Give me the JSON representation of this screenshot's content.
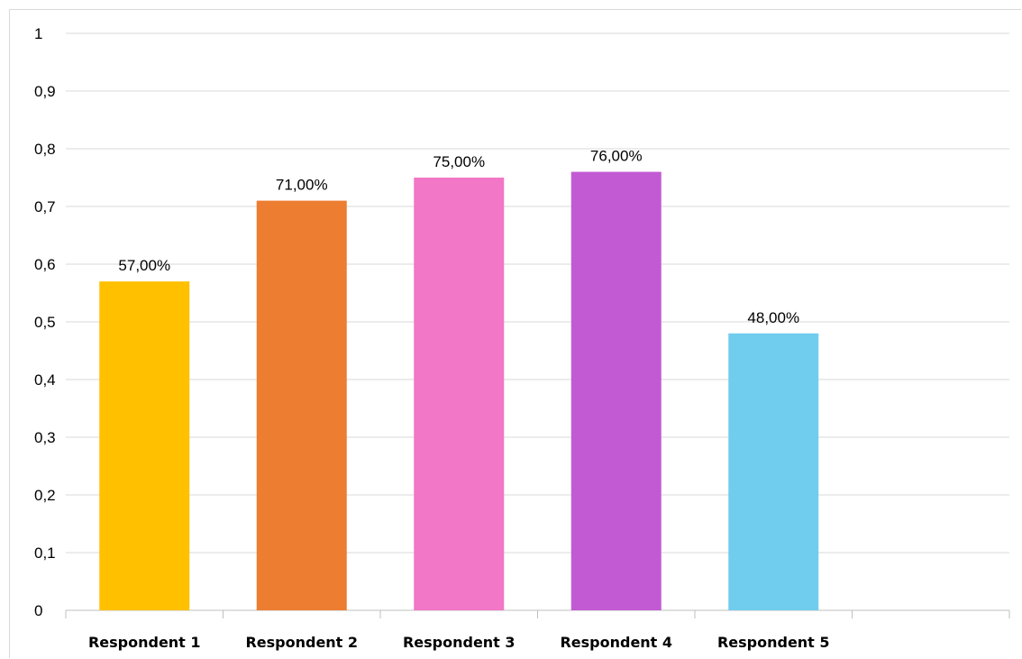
{
  "chart_data": {
    "type": "bar",
    "title": "",
    "xlabel": "",
    "ylabel": "",
    "categories": [
      "Respondent 1",
      "Respondent 2",
      "Respondent 3",
      "Respondent 4",
      "Respondent 5",
      ""
    ],
    "values": [
      0.57,
      0.71,
      0.75,
      0.76,
      0.48,
      null
    ],
    "data_labels": [
      "57,00%",
      "71,00%",
      "75,00%",
      "76,00%",
      "48,00%",
      ""
    ],
    "bar_colors": [
      "#FFC000",
      "#ED7D31",
      "#F277C6",
      "#C25BD3",
      "#70CDEE"
    ],
    "ylim": [
      0,
      1
    ],
    "yticks": [
      0,
      0.1,
      0.2,
      0.3,
      0.4,
      0.5,
      0.6,
      0.7,
      0.8,
      0.9,
      1
    ],
    "ytick_labels": [
      "0",
      "0,1",
      "0,2",
      "0,3",
      "0,4",
      "0,5",
      "0,6",
      "0,7",
      "0,8",
      "0,9",
      "1"
    ],
    "grid": true,
    "legend": "none"
  },
  "colors": {
    "grid": "#d9d9d9",
    "axis": "#bfbfbf"
  }
}
